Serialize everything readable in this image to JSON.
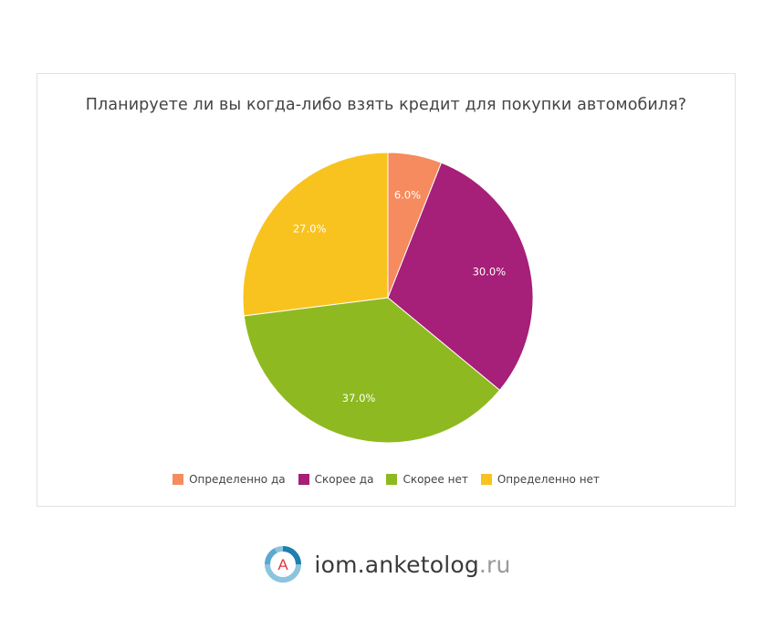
{
  "chart_data": {
    "type": "pie",
    "title": "Планируете ли вы когда-либо взять кредит для покупки автомобиля?",
    "categories": [
      "Определенно да",
      "Скорее да",
      "Скорее нет",
      "Определенно нет"
    ],
    "values": [
      6.0,
      30.0,
      37.0,
      27.0
    ],
    "labels": [
      "6.0%",
      "30.0%",
      "37.0%",
      "27.0%"
    ],
    "colors": [
      "#f58b5e",
      "#a61f78",
      "#8fb921",
      "#f9c31f"
    ],
    "legend_position": "bottom"
  },
  "footer": {
    "logo_letter": "A",
    "brand": "iom.anketolog",
    "tld": ".ru"
  }
}
